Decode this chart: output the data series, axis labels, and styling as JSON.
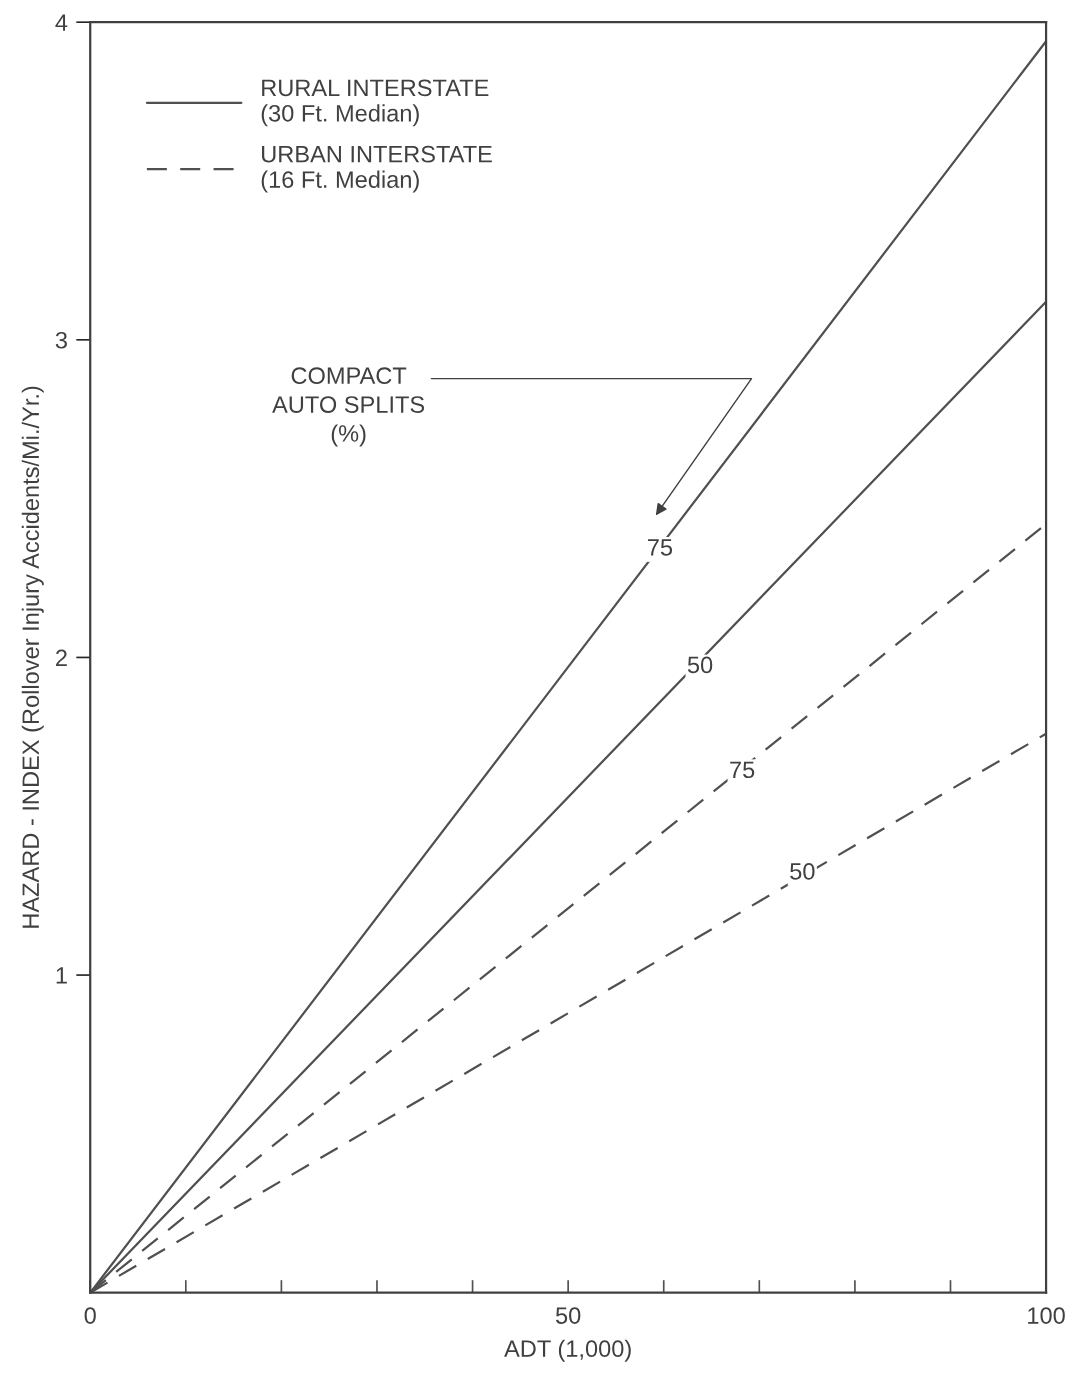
{
  "chart_data": {
    "type": "line",
    "xlabel": "ADT (1,000)",
    "ylabel": "HAZARD - INDEX (Rollover Injury Accidents/Mi./Yr.)",
    "x": [
      0,
      100
    ],
    "series": [
      {
        "name": "RURAL INTERSTATE\n(30 Ft. Median)",
        "color": "#505050",
        "line_style": "solid",
        "values": [
          0,
          3.94
        ]
      },
      {
        "color": "#505050",
        "line_style": "solid",
        "values": [
          0,
          3.12
        ]
      },
      {
        "name": "URBAN INTERSTATE\n(16 Ft. Median)",
        "color": "#505050",
        "line_style": "dashed",
        "values": [
          0,
          2.42
        ]
      },
      {
        "color": "#505050",
        "line_style": "dashed",
        "values": [
          0,
          1.76
        ]
      }
    ],
    "xlim": [
      0,
      100
    ],
    "ylim": [
      0,
      4
    ],
    "xticks": [
      0,
      {
        "value": 10,
        "label": null
      },
      {
        "value": 20,
        "label": null
      },
      {
        "value": 30,
        "label": null
      },
      {
        "value": 40,
        "label": null
      },
      50,
      {
        "value": 60,
        "label": null
      },
      {
        "value": 70,
        "label": null
      },
      {
        "value": 80,
        "label": null
      },
      {
        "value": 90,
        "label": null
      },
      100
    ],
    "yticks": [
      1,
      2,
      3,
      4
    ],
    "annotations": [
      {
        "text": "75",
        "x": 59.6,
        "y": 2.34
      },
      {
        "text": "50",
        "x": 63.8,
        "y": 1.97
      },
      {
        "text": "75",
        "x": 68.2,
        "y": 1.64
      },
      {
        "text": "50",
        "x": 74.5,
        "y": 1.32
      },
      "COMPACT\nAUTO SPLITS\n(%)"
    ],
    "legend": "top left",
    "grid": false,
    "marker": "none"
  }
}
